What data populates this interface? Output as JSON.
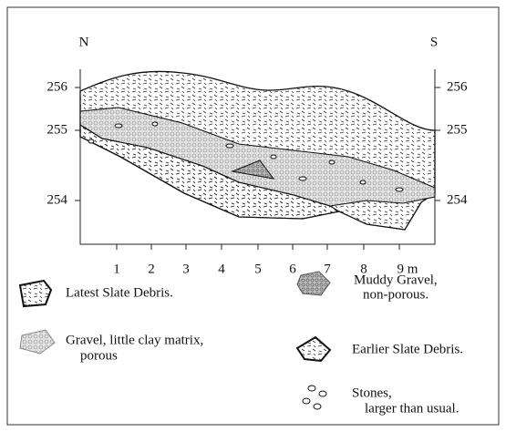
{
  "axis": {
    "left_label": "N",
    "right_label": "S",
    "left_ticks": [
      "256",
      "255",
      "254"
    ],
    "right_ticks": [
      "256",
      "255",
      "254"
    ],
    "x_ticks": [
      "1",
      "2",
      "3",
      "4",
      "5",
      "6",
      "7",
      "8",
      "9 m"
    ]
  },
  "legend": [
    {
      "lines": [
        "Latest Slate Debris."
      ]
    },
    {
      "lines": [
        "Gravel, little clay matrix,",
        "porous"
      ]
    },
    {
      "lines": [
        "Muddy Gravel,",
        "non-porous."
      ]
    },
    {
      "lines": [
        "Earlier Slate Debris."
      ]
    },
    {
      "lines": [
        "Stones,",
        "larger than usual."
      ]
    }
  ]
}
